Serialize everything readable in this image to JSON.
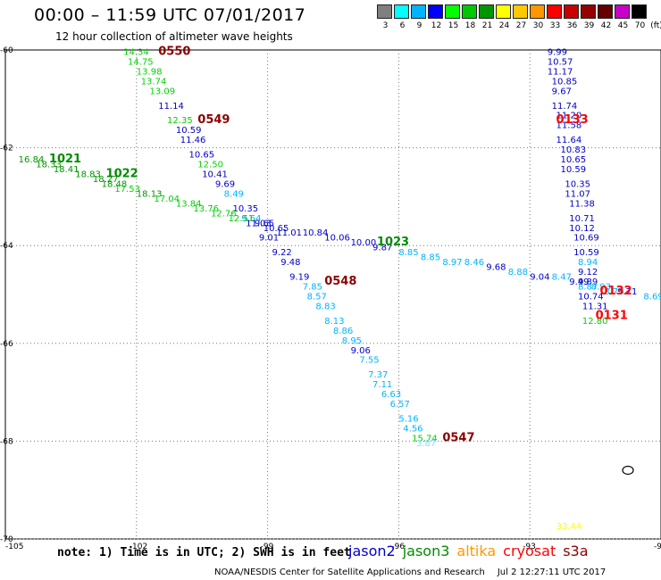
{
  "header": {
    "title": "00:00 – 11:59 UTC 07/01/2017",
    "subtitle": "12 hour collection of altimeter wave heights"
  },
  "colorbar": {
    "unit": "(ft)",
    "ticks": [
      "3",
      "6",
      "9",
      "12",
      "15",
      "18",
      "21",
      "24",
      "27",
      "30",
      "33",
      "36",
      "39",
      "42",
      "45",
      "70"
    ],
    "colors": [
      "#7f7f7f",
      "#00ffff",
      "#00b4ff",
      "#0000ff",
      "#00ff00",
      "#00c800",
      "#009600",
      "#ffff00",
      "#ffc800",
      "#ff9600",
      "#ff0000",
      "#c80000",
      "#960000",
      "#640000",
      "#c800c8",
      "#000000"
    ]
  },
  "axes": {
    "lon_ticks": [
      "-105",
      "-102",
      "-99",
      "-96",
      "-93",
      "-90"
    ],
    "lat_ticks": [
      "-60",
      "-62",
      "-64",
      "-66",
      "-68",
      "-70"
    ]
  },
  "satellites": [
    {
      "name": "jason2",
      "color": "#0000cc"
    },
    {
      "name": "jason3",
      "color": "#008c00"
    },
    {
      "name": "altika",
      "color": "#ff9900"
    },
    {
      "name": "cryosat",
      "color": "#ff0000"
    },
    {
      "name": "s3a",
      "color": "#8b0000"
    }
  ],
  "passes": [
    {
      "time": "0550",
      "sat": "s3a",
      "color": "#8b0000",
      "lon": -101.5,
      "lat": -60.1
    },
    {
      "time": "0549",
      "sat": "s3a",
      "color": "#8b0000",
      "lon": -100.6,
      "lat": -61.5
    },
    {
      "time": "0548",
      "sat": "s3a",
      "color": "#8b0000",
      "lon": -97.7,
      "lat": -64.8
    },
    {
      "time": "0547",
      "sat": "s3a",
      "color": "#8b0000",
      "lon": -95.0,
      "lat": -68.0
    },
    {
      "time": "1021",
      "sat": "jason3",
      "color": "#008c00",
      "lon": -104.0,
      "lat": -62.3
    },
    {
      "time": "1022",
      "sat": "jason3",
      "color": "#008c00",
      "lon": -102.7,
      "lat": -62.6
    },
    {
      "time": "1023",
      "sat": "jason3",
      "color": "#008c00",
      "lon": -96.5,
      "lat": -64.0
    },
    {
      "time": "0133",
      "sat": "cryosat",
      "color": "#ff0000",
      "lon": -92.4,
      "lat": -61.5
    },
    {
      "time": "0132",
      "sat": "cryosat",
      "color": "#ff0000",
      "lon": -91.4,
      "lat": -65.0
    },
    {
      "time": "0131",
      "sat": "cryosat",
      "color": "#ff0000",
      "lon": -91.5,
      "lat": -65.5
    }
  ],
  "points": [
    {
      "v": "14.34",
      "lon": -102.3,
      "lat": -60.1,
      "c": "#00d200"
    },
    {
      "v": "14.75",
      "lon": -102.2,
      "lat": -60.3,
      "c": "#00d200"
    },
    {
      "v": "13.98",
      "lon": -102.0,
      "lat": -60.5,
      "c": "#00d200"
    },
    {
      "v": "13.74",
      "lon": -101.9,
      "lat": -60.7,
      "c": "#00d200"
    },
    {
      "v": "13.09",
      "lon": -101.7,
      "lat": -60.9,
      "c": "#00d200"
    },
    {
      "v": "11.14",
      "lon": -101.5,
      "lat": -61.2,
      "c": "#0000c8"
    },
    {
      "v": "12.35",
      "lon": -101.3,
      "lat": -61.5,
      "c": "#00d200"
    },
    {
      "v": "10.59",
      "lon": -101.1,
      "lat": -61.7,
      "c": "#0000c8"
    },
    {
      "v": "11.46",
      "lon": -101.0,
      "lat": -61.9,
      "c": "#0000c8"
    },
    {
      "v": "10.65",
      "lon": -100.8,
      "lat": -62.2,
      "c": "#0000c8"
    },
    {
      "v": "12.50",
      "lon": -100.6,
      "lat": -62.4,
      "c": "#00d200"
    },
    {
      "v": "10.41",
      "lon": -100.5,
      "lat": -62.6,
      "c": "#0000c8"
    },
    {
      "v": "9.69",
      "lon": -100.2,
      "lat": -62.8,
      "c": "#0000c8"
    },
    {
      "v": "8.49",
      "lon": -100.0,
      "lat": -63.0,
      "c": "#00b4ff"
    },
    {
      "v": "10.35",
      "lon": -99.8,
      "lat": -63.3,
      "c": "#0000c8"
    },
    {
      "v": "9.64",
      "lon": -99.6,
      "lat": -63.5,
      "c": "#00b4ff"
    },
    {
      "v": "11.03",
      "lon": -99.5,
      "lat": -63.6,
      "c": "#0000c8"
    },
    {
      "v": "10.65",
      "lon": -99.1,
      "lat": -63.7,
      "c": "#0000c8"
    },
    {
      "v": "9.01",
      "lon": -99.2,
      "lat": -63.9,
      "c": "#0000c8"
    },
    {
      "v": "9.22",
      "lon": -98.9,
      "lat": -64.2,
      "c": "#0000c8"
    },
    {
      "v": "9.48",
      "lon": -98.7,
      "lat": -64.4,
      "c": "#0000c8"
    },
    {
      "v": "9.19",
      "lon": -98.5,
      "lat": -64.7,
      "c": "#0000c8"
    },
    {
      "v": "7.85",
      "lon": -98.2,
      "lat": -64.9,
      "c": "#00b4ff"
    },
    {
      "v": "8.57",
      "lon": -98.1,
      "lat": -65.1,
      "c": "#00b4ff"
    },
    {
      "v": "8.83",
      "lon": -97.9,
      "lat": -65.3,
      "c": "#00b4ff"
    },
    {
      "v": "8.13",
      "lon": -97.7,
      "lat": -65.6,
      "c": "#00b4ff"
    },
    {
      "v": "8.86",
      "lon": -97.5,
      "lat": -65.8,
      "c": "#00b4ff"
    },
    {
      "v": "8.95",
      "lon": -97.3,
      "lat": -66.0,
      "c": "#00b4ff"
    },
    {
      "v": "9.06",
      "lon": -97.1,
      "lat": -66.2,
      "c": "#0000c8"
    },
    {
      "v": "7.55",
      "lon": -96.9,
      "lat": -66.4,
      "c": "#00b4ff"
    },
    {
      "v": "7.37",
      "lon": -96.7,
      "lat": -66.7,
      "c": "#00b4ff"
    },
    {
      "v": "7.11",
      "lon": -96.6,
      "lat": -66.9,
      "c": "#00b4ff"
    },
    {
      "v": "6.63",
      "lon": -96.4,
      "lat": -67.1,
      "c": "#00b4ff"
    },
    {
      "v": "6.57",
      "lon": -96.2,
      "lat": -67.3,
      "c": "#00b4ff"
    },
    {
      "v": "5.16",
      "lon": -96.0,
      "lat": -67.6,
      "c": "#00b4ff"
    },
    {
      "v": "4.56",
      "lon": -95.9,
      "lat": -67.8,
      "c": "#00b4ff"
    },
    {
      "v": "15.74",
      "lon": -95.7,
      "lat": -68.0,
      "c": "#00d200"
    },
    {
      "v": "3.87",
      "lon": -95.6,
      "lat": -68.1,
      "c": "#7fdcff"
    },
    {
      "v": "16.84",
      "lon": -104.7,
      "lat": -62.3,
      "c": "#009600"
    },
    {
      "v": "18.33",
      "lon": -104.3,
      "lat": -62.4,
      "c": "#009600"
    },
    {
      "v": "18.41",
      "lon": -103.9,
      "lat": -62.5,
      "c": "#009600"
    },
    {
      "v": "18.83",
      "lon": -103.4,
      "lat": -62.6,
      "c": "#009600"
    },
    {
      "v": "18.27",
      "lon": -103.0,
      "lat": -62.7,
      "c": "#009600"
    },
    {
      "v": "18.48",
      "lon": -102.8,
      "lat": -62.8,
      "c": "#009600"
    },
    {
      "v": "17.53",
      "lon": -102.5,
      "lat": -62.9,
      "c": "#00d200"
    },
    {
      "v": "18.13",
      "lon": -102.0,
      "lat": -63.0,
      "c": "#009600"
    },
    {
      "v": "17.04",
      "lon": -101.6,
      "lat": -63.1,
      "c": "#00d200"
    },
    {
      "v": "13.84",
      "lon": -101.1,
      "lat": -63.2,
      "c": "#00d200"
    },
    {
      "v": "13.76",
      "lon": -100.7,
      "lat": -63.3,
      "c": "#00d200"
    },
    {
      "v": "12.76",
      "lon": -100.3,
      "lat": -63.4,
      "c": "#00d200"
    },
    {
      "v": "12.51",
      "lon": -99.9,
      "lat": -63.5,
      "c": "#00d200"
    },
    {
      "v": "9.65",
      "lon": -99.3,
      "lat": -63.6,
      "c": "#0000c8"
    },
    {
      "v": "11.01",
      "lon": -98.8,
      "lat": -63.8,
      "c": "#0000c8"
    },
    {
      "v": "10.84",
      "lon": -98.2,
      "lat": -63.8,
      "c": "#0000c8"
    },
    {
      "v": "10.06",
      "lon": -97.7,
      "lat": -63.9,
      "c": "#0000c8"
    },
    {
      "v": "10.00",
      "lon": -97.1,
      "lat": -64.0,
      "c": "#0000c8"
    },
    {
      "v": "9.87",
      "lon": -96.6,
      "lat": -64.1,
      "c": "#0000c8"
    },
    {
      "v": "8.85",
      "lon": -96.0,
      "lat": -64.2,
      "c": "#00b4ff"
    },
    {
      "v": "8.85",
      "lon": -95.5,
      "lat": -64.3,
      "c": "#00b4ff"
    },
    {
      "v": "8.97",
      "lon": -95.0,
      "lat": -64.4,
      "c": "#00b4ff"
    },
    {
      "v": "8.46",
      "lon": -94.5,
      "lat": -64.4,
      "c": "#00b4ff"
    },
    {
      "v": "9.68",
      "lon": -94.0,
      "lat": -64.5,
      "c": "#0000c8"
    },
    {
      "v": "8.88",
      "lon": -93.5,
      "lat": -64.6,
      "c": "#00b4ff"
    },
    {
      "v": "9.04",
      "lon": -93.0,
      "lat": -64.7,
      "c": "#0000c8"
    },
    {
      "v": "8.47",
      "lon": -92.5,
      "lat": -64.7,
      "c": "#00b4ff"
    },
    {
      "v": "9.49",
      "lon": -92.1,
      "lat": -64.8,
      "c": "#0000c8"
    },
    {
      "v": "9.71",
      "lon": -91.0,
      "lat": -65.0,
      "c": "#0000c8"
    },
    {
      "v": "8.69",
      "lon": -90.4,
      "lat": -65.1,
      "c": "#00b4ff"
    },
    {
      "v": "9.99",
      "lon": -92.6,
      "lat": -60.1,
      "c": "#0000c8"
    },
    {
      "v": "10.57",
      "lon": -92.6,
      "lat": -60.3,
      "c": "#0000c8"
    },
    {
      "v": "11.17",
      "lon": -92.6,
      "lat": -60.5,
      "c": "#0000c8"
    },
    {
      "v": "10.85",
      "lon": -92.5,
      "lat": -60.7,
      "c": "#0000c8"
    },
    {
      "v": "9.67",
      "lon": -92.5,
      "lat": -60.9,
      "c": "#0000c8"
    },
    {
      "v": "11.74",
      "lon": -92.5,
      "lat": -61.2,
      "c": "#0000c8"
    },
    {
      "v": "11.20",
      "lon": -92.4,
      "lat": -61.4,
      "c": "#0000c8"
    },
    {
      "v": "11.58",
      "lon": -92.4,
      "lat": -61.6,
      "c": "#0000c8"
    },
    {
      "v": "11.64",
      "lon": -92.4,
      "lat": -61.9,
      "c": "#0000c8"
    },
    {
      "v": "10.83",
      "lon": -92.3,
      "lat": -62.1,
      "c": "#0000c8"
    },
    {
      "v": "10.65",
      "lon": -92.3,
      "lat": -62.3,
      "c": "#0000c8"
    },
    {
      "v": "10.59",
      "lon": -92.3,
      "lat": -62.5,
      "c": "#0000c8"
    },
    {
      "v": "10.35",
      "lon": -92.2,
      "lat": -62.8,
      "c": "#0000c8"
    },
    {
      "v": "11.07",
      "lon": -92.2,
      "lat": -63.0,
      "c": "#0000c8"
    },
    {
      "v": "11.38",
      "lon": -92.1,
      "lat": -63.2,
      "c": "#0000c8"
    },
    {
      "v": "10.71",
      "lon": -92.1,
      "lat": -63.5,
      "c": "#0000c8"
    },
    {
      "v": "10.12",
      "lon": -92.1,
      "lat": -63.7,
      "c": "#0000c8"
    },
    {
      "v": "10.69",
      "lon": -92.0,
      "lat": -63.9,
      "c": "#0000c8"
    },
    {
      "v": "10.59",
      "lon": -92.0,
      "lat": -64.2,
      "c": "#0000c8"
    },
    {
      "v": "8.94",
      "lon": -91.9,
      "lat": -64.4,
      "c": "#00b4ff"
    },
    {
      "v": "9.12",
      "lon": -91.9,
      "lat": -64.6,
      "c": "#0000c8"
    },
    {
      "v": "9.89",
      "lon": -91.9,
      "lat": -64.8,
      "c": "#0000c8"
    },
    {
      "v": "8.87",
      "lon": -91.9,
      "lat": -64.9,
      "c": "#00b4ff"
    },
    {
      "v": "8.93",
      "lon": -91.6,
      "lat": -64.9,
      "c": "#00b4ff"
    },
    {
      "v": "8.79",
      "lon": -91.3,
      "lat": -65.0,
      "c": "#00b4ff"
    },
    {
      "v": "10.74",
      "lon": -91.9,
      "lat": -65.1,
      "c": "#0000c8"
    },
    {
      "v": "11.31",
      "lon": -91.8,
      "lat": -65.3,
      "c": "#0000c8"
    },
    {
      "v": "12.80",
      "lon": -91.8,
      "lat": -65.6,
      "c": "#00d200"
    },
    {
      "v": "10",
      "lon": -89.9,
      "lat": -65.0,
      "c": "#009600"
    },
    {
      "v": "9",
      "lon": -89.9,
      "lat": -65.2,
      "c": "#0000c8"
    },
    {
      "v": "33.44",
      "lon": -92.4,
      "lat": -69.8,
      "c": "#ffff00"
    }
  ],
  "footer": {
    "note": "note: 1) Time is in UTC; 2) SWH is in feet",
    "credit": "NOAA/NESDIS Center for Satellite Applications and Research",
    "timestamp": "Jul  2 12:27:11 UTC 2017"
  }
}
